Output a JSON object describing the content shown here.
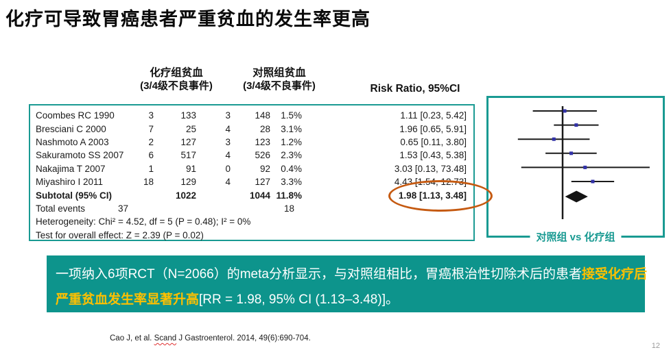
{
  "slide": {
    "title": "化疗可导致胃癌患者严重贫血的发生率更高",
    "page_number": "12"
  },
  "colors": {
    "teal_border": "#199A92",
    "teal_bg": "#0D948C",
    "yellow": "#FFC000",
    "orange": "#C55A11",
    "marker_blue": "#3232A8",
    "line_black": "#1A1A1A"
  },
  "table": {
    "col_headers": {
      "chemo_line1": "化疗组贫血",
      "chemo_line2": "(3/4级不良事件)",
      "control_line1": "对照组贫血",
      "control_line2": "(3/4级不良事件)",
      "risk_ratio": "Risk Ratio, 95%CI"
    },
    "total_events": {
      "label": "Total events",
      "chemo": "37",
      "control": "18"
    },
    "heterogeneity": "Heterogeneity: Chi² = 4.52, df = 5 (P = 0.48); I² = 0%",
    "overall_effect": "Test for overall effect: Z = 2.39 (P = 0.02)"
  },
  "chart_data": {
    "type": "forest",
    "scale": "log",
    "axis_center_rr": 1,
    "studies": [
      {
        "name": "Coombes RC 1990",
        "chemo_events": "3",
        "chemo_total": "133",
        "control_events": "3",
        "control_total": "148",
        "weight": "1.5%",
        "rr": 1.11,
        "ci_low": 0.23,
        "ci_high": 5.42,
        "rr_label": "1.11 [0.23, 5.42]"
      },
      {
        "name": "Bresciani C 2000",
        "chemo_events": "7",
        "chemo_total": "25",
        "control_events": "4",
        "control_total": "28",
        "weight": "3.1%",
        "rr": 1.96,
        "ci_low": 0.65,
        "ci_high": 5.91,
        "rr_label": "1.96 [0.65, 5.91]"
      },
      {
        "name": "Nashmoto A 2003",
        "chemo_events": "2",
        "chemo_total": "127",
        "control_events": "3",
        "control_total": "123",
        "weight": "1.2%",
        "rr": 0.65,
        "ci_low": 0.11,
        "ci_high": 3.8,
        "rr_label": "0.65 [0.11, 3.80]"
      },
      {
        "name": "Sakuramoto SS 2007",
        "chemo_events": "6",
        "chemo_total": "517",
        "control_events": "4",
        "control_total": "526",
        "weight": "2.3%",
        "rr": 1.53,
        "ci_low": 0.43,
        "ci_high": 5.38,
        "rr_label": "1.53 [0.43, 5.38]"
      },
      {
        "name": "Nakajima T 2007",
        "chemo_events": "1",
        "chemo_total": "91",
        "control_events": "0",
        "control_total": "92",
        "weight": "0.4%",
        "rr": 3.03,
        "ci_low": 0.13,
        "ci_high": 73.48,
        "rr_label": "3.03 [0.13, 73.48]"
      },
      {
        "name": "Miyashiro I 2011",
        "chemo_events": "18",
        "chemo_total": "129",
        "control_events": "4",
        "control_total": "127",
        "weight": "3.3%",
        "rr": 4.43,
        "ci_low": 1.54,
        "ci_high": 12.73,
        "rr_label": "4.43 [1.54, 12.73]"
      }
    ],
    "subtotal": {
      "name": "Subtotal (95% CI)",
      "chemo_total": "1022",
      "control_total": "1044",
      "weight": "11.8%",
      "rr": 1.98,
      "ci_low": 1.13,
      "ci_high": 3.48,
      "rr_label": "1.98 [1.13, 3.48]"
    }
  },
  "forest_plot": {
    "label": "对照组 vs 化疗组"
  },
  "summary": {
    "line1": [
      {
        "text": "一项纳入6项RCT（N=2066）的meta分析显示，与对照组相比，胃癌根治性切除术后的患者",
        "highlight": false
      },
      {
        "text": "接受化疗后",
        "highlight": true
      }
    ],
    "line2": [
      {
        "text": "严重贫血发生率显著升高",
        "highlight": true
      },
      {
        "text": "[RR = 1.98, 95% CI (1.13–3.48)]。",
        "highlight": false
      }
    ]
  },
  "citation": {
    "segments": [
      {
        "text": "Cao J, et al. ",
        "squiggle": false
      },
      {
        "text": "Scand",
        "squiggle": true
      },
      {
        "text": " J Gastroenterol. 2014, 49(6):690-704.",
        "squiggle": false
      }
    ]
  }
}
